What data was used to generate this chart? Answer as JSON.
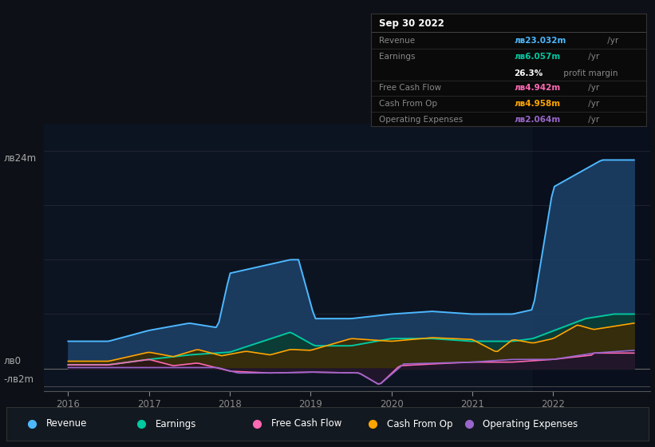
{
  "bg_color": "#0d1117",
  "plot_bg_color": "#0d1421",
  "series_colors": {
    "Revenue": "#4db8ff",
    "Earnings": "#00c8a0",
    "Free Cash Flow": "#ff69b4",
    "Cash From Op": "#ffa500",
    "Operating Expenses": "#9966cc"
  },
  "fill_colors": {
    "Revenue": "#1a3a5c",
    "Earnings": "#0a3d35",
    "Free Cash Flow": "#3a1020",
    "Cash From Op": "#3d2a00",
    "Operating Expenses": "#252030"
  },
  "ylim_min": -2.5,
  "ylim_max": 27,
  "y_label_top": "лв24m",
  "y_label_zero": "лв0",
  "y_label_neg2": "-лв2m",
  "xlabel_ticks": [
    "2016",
    "2017",
    "2018",
    "2019",
    "2020",
    "2021",
    "2022"
  ],
  "xlabel_values": [
    2016,
    2017,
    2018,
    2019,
    2020,
    2021,
    2022
  ],
  "info_title": "Sep 30 2022",
  "info_rows": [
    {
      "label": "Revenue",
      "value": "лв23.032m",
      "suffix": " /yr",
      "color": "#4db8ff",
      "margin": null
    },
    {
      "label": "Earnings",
      "value": "лв6.057m",
      "suffix": " /yr",
      "color": "#00c8a0",
      "margin": "26.3% profit margin"
    },
    {
      "label": "Free Cash Flow",
      "value": "лв4.942m",
      "suffix": " /yr",
      "color": "#ff69b4",
      "margin": null
    },
    {
      "label": "Cash From Op",
      "value": "лв4.958m",
      "suffix": " /yr",
      "color": "#ffa500",
      "margin": null
    },
    {
      "label": "Operating Expenses",
      "value": "лв2.064m",
      "suffix": " /yr",
      "color": "#9966cc",
      "margin": null
    }
  ],
  "legend": [
    {
      "label": "Revenue",
      "color": "#4db8ff"
    },
    {
      "label": "Earnings",
      "color": "#00c8a0"
    },
    {
      "label": "Free Cash Flow",
      "color": "#ff69b4"
    },
    {
      "label": "Cash From Op",
      "color": "#ffa500"
    },
    {
      "label": "Operating Expenses",
      "color": "#9966cc"
    }
  ],
  "highlight_x_start": 2021.75,
  "highlight_x_end": 2023.2,
  "xlim_min": 2015.7,
  "xlim_max": 2023.2
}
